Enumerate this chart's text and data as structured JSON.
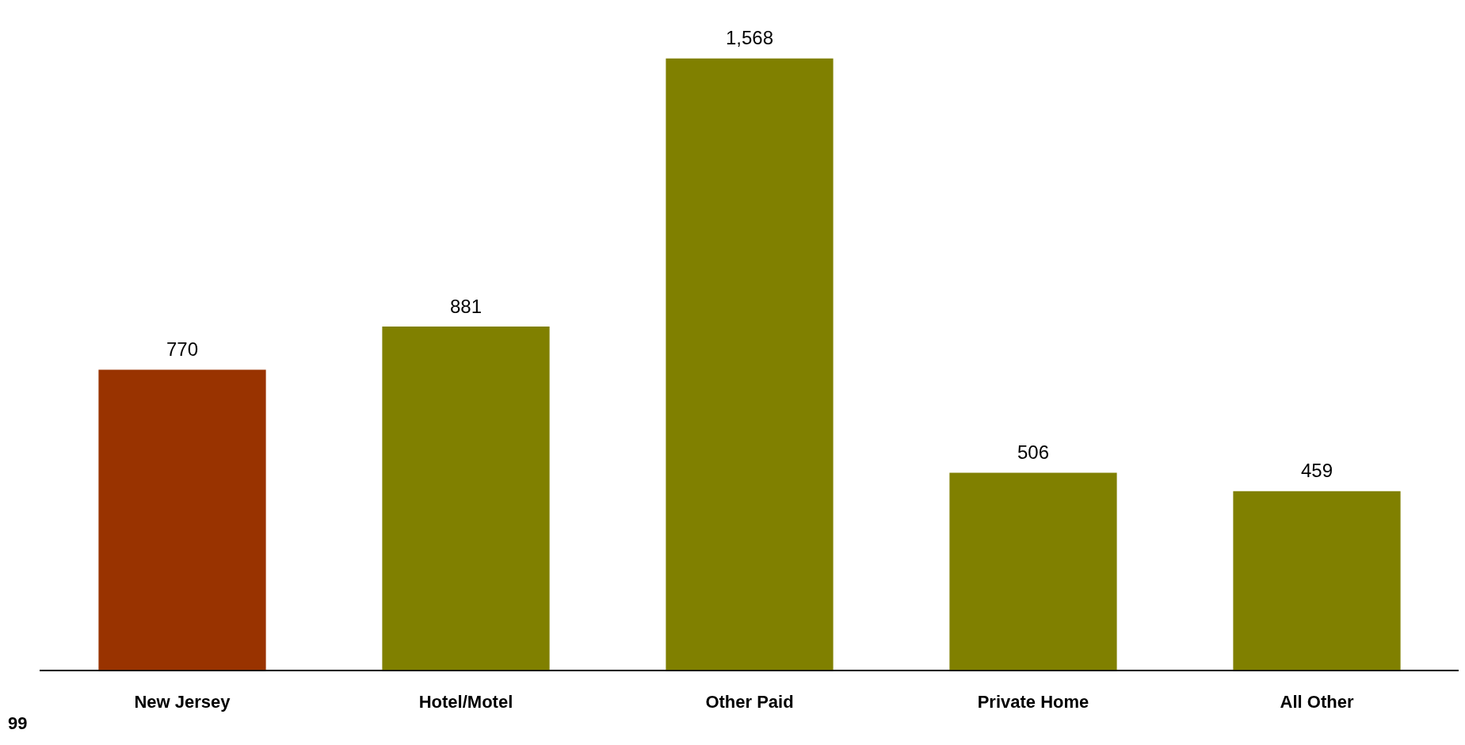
{
  "chart_data": {
    "type": "bar",
    "categories": [
      "New Jersey",
      "Hotel/Motel",
      "Other Paid",
      "Private Home",
      "All Other"
    ],
    "values": [
      770,
      881,
      1568,
      506,
      459
    ],
    "colors": [
      "#993300",
      "#808000",
      "#808000",
      "#808000",
      "#808000"
    ],
    "value_labels": [
      "770",
      "881",
      "1,568",
      "506",
      "459"
    ],
    "grid": false,
    "legend": false,
    "tick_labels": "x",
    "annotations": [
      "99"
    ]
  }
}
